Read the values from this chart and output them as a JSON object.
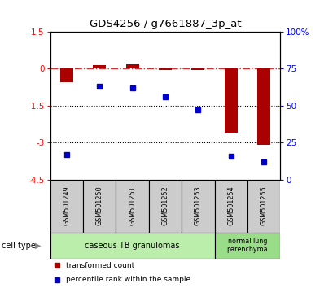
{
  "title": "GDS4256 / g7661887_3p_at",
  "samples": [
    "GSM501249",
    "GSM501250",
    "GSM501251",
    "GSM501252",
    "GSM501253",
    "GSM501254",
    "GSM501255"
  ],
  "red_bars": [
    -0.55,
    0.13,
    0.18,
    -0.05,
    -0.05,
    -2.6,
    -3.1
  ],
  "ylim_left": [
    -4.5,
    1.5
  ],
  "yticks_left": [
    1.5,
    0,
    -1.5,
    -3.0,
    -4.5
  ],
  "ytick_labels_left": [
    "1.5",
    "0",
    "-1.5",
    "-3",
    "-4.5"
  ],
  "yticks_right_vals": [
    0,
    25,
    50,
    75,
    100
  ],
  "ylim_right": [
    0,
    100
  ],
  "blue_percentile": [
    17,
    63,
    62,
    56,
    47,
    16,
    12
  ],
  "group1_label": "caseous TB granulomas",
  "group2_label": "normal lung\nparenchyma",
  "cell_type_label": "cell type",
  "legend_red": "transformed count",
  "legend_blue": "percentile rank within the sample",
  "bar_color": "#aa0000",
  "dot_color": "#0000cc",
  "dashed_line_color": "#cc3333",
  "group1_color": "#bbeeaa",
  "group2_color": "#99dd88",
  "sample_box_color": "#cccccc"
}
